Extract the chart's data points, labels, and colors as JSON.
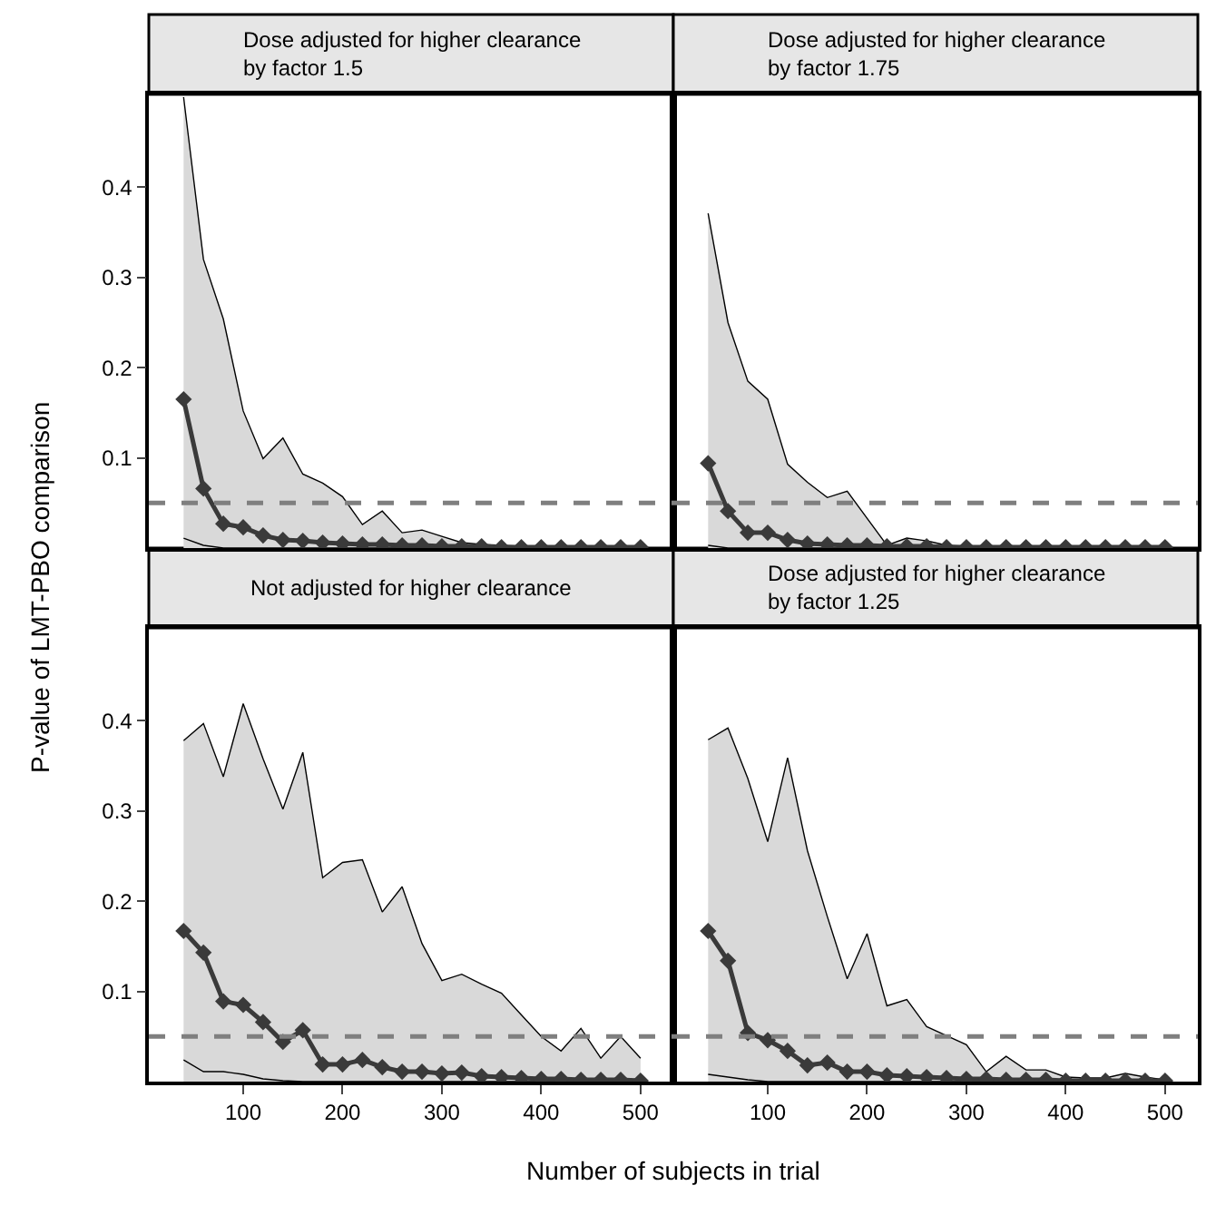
{
  "chart_data": [
    {
      "type": "line",
      "title": "Dose adjusted for higher clearance by factor 1.5",
      "ylabel": "P-value of LMT-PBO comparison",
      "x": [
        40,
        60,
        80,
        100,
        120,
        140,
        160,
        180,
        200,
        220,
        240,
        260,
        280,
        300,
        320,
        340,
        360,
        380,
        400,
        420,
        440,
        460,
        480,
        500
      ],
      "xlim": [
        5,
        533
      ],
      "ylim": [
        0,
        0.503
      ],
      "yticks": [
        0.1,
        0.2,
        0.3,
        0.4
      ],
      "xticks": [
        100,
        200,
        300,
        400,
        500
      ],
      "tick_labels": "y",
      "marker": "diamond",
      "line_style": "solid",
      "series": [
        {
          "type": "area",
          "color": "#000000",
          "marker": "none",
          "values": [
            0.5,
            0.32,
            0.254,
            0.152,
            0.099,
            0.122,
            0.082,
            0.072,
            0.057,
            0.026,
            0.041,
            0.017,
            0.02,
            0.013,
            0.006,
            0.004,
            0.003,
            0.002,
            0.002,
            0.001,
            0.001,
            0.001,
            0.001,
            0.001
          ]
        },
        {
          "type": "line",
          "color": "#000000",
          "marker": "none",
          "values": [
            0.011,
            0.003,
            0,
            0,
            0,
            0,
            0,
            0,
            0,
            0,
            0,
            0,
            0,
            0,
            0,
            0,
            0,
            0,
            0,
            0,
            0,
            0,
            0,
            0
          ]
        },
        {
          "color": "#3a3a3a",
          "values": [
            0.165,
            0.066,
            0.027,
            0.023,
            0.014,
            0.009,
            0.008,
            0.006,
            0.005,
            0.004,
            0.004,
            0.003,
            0.003,
            0.002,
            0.002,
            0.002,
            0.001,
            0.001,
            0.001,
            0.001,
            0.001,
            0.001,
            0.001,
            0.001
          ]
        }
      ],
      "ref_lines": [
        {
          "axis": "y",
          "value": 0.05,
          "color": "#7f7f7f",
          "line_style": "dashed"
        }
      ]
    },
    {
      "type": "line",
      "title": "Dose adjusted for higher clearance by factor 1.75",
      "x": [
        40,
        60,
        80,
        100,
        120,
        140,
        160,
        180,
        200,
        220,
        240,
        260,
        280,
        300,
        320,
        340,
        360,
        380,
        400,
        420,
        440,
        460,
        480,
        500
      ],
      "xlim": [
        5,
        533
      ],
      "ylim": [
        0,
        0.503
      ],
      "yticks": [
        0.1,
        0.2,
        0.3,
        0.4
      ],
      "xticks": [
        100,
        200,
        300,
        400,
        500
      ],
      "tick_labels": false,
      "marker": "diamond",
      "line_style": "solid",
      "series": [
        {
          "type": "area",
          "color": "#000000",
          "marker": "none",
          "values": [
            0.371,
            0.25,
            0.185,
            0.165,
            0.093,
            0.073,
            0.056,
            0.063,
            0.033,
            0.003,
            0.011,
            0.008,
            0.003,
            0.002,
            0.001,
            0.001,
            0.001,
            0.001,
            0.001,
            0.001,
            0.001,
            0.001,
            0.001,
            0.001
          ]
        },
        {
          "type": "line",
          "color": "#000000",
          "marker": "none",
          "values": [
            0.003,
            0,
            0,
            0,
            0,
            0,
            0,
            0,
            0,
            0,
            0,
            0,
            0,
            0,
            0,
            0,
            0,
            0,
            0,
            0,
            0,
            0,
            0,
            0
          ]
        },
        {
          "color": "#3a3a3a",
          "values": [
            0.094,
            0.041,
            0.017,
            0.017,
            0.009,
            0.005,
            0.004,
            0.003,
            0.003,
            0.002,
            0.002,
            0.002,
            0.001,
            0.001,
            0.001,
            0.001,
            0.001,
            0.001,
            0.001,
            0.001,
            0.001,
            0.001,
            0.001,
            0.001
          ]
        }
      ],
      "ref_lines": [
        {
          "axis": "y",
          "value": 0.05,
          "color": "#7f7f7f",
          "line_style": "dashed"
        }
      ]
    },
    {
      "type": "line",
      "title": "Not adjusted for higher clearance",
      "xlabel": "Number of subjects in trial",
      "x": [
        40,
        60,
        80,
        100,
        120,
        140,
        160,
        180,
        200,
        220,
        240,
        260,
        280,
        300,
        320,
        340,
        360,
        380,
        400,
        420,
        440,
        460,
        480,
        500
      ],
      "xlim": [
        5,
        533
      ],
      "ylim": [
        0,
        0.503
      ],
      "yticks": [
        0.1,
        0.2,
        0.3,
        0.4
      ],
      "xticks": [
        100,
        200,
        300,
        400,
        500
      ],
      "marker": "diamond",
      "line_style": "solid",
      "series": [
        {
          "type": "area",
          "color": "#000000",
          "marker": "none",
          "values": [
            0.378,
            0.397,
            0.338,
            0.419,
            0.358,
            0.302,
            0.365,
            0.226,
            0.243,
            0.246,
            0.188,
            0.216,
            0.153,
            0.112,
            0.119,
            0.108,
            0.098,
            0.074,
            0.05,
            0.034,
            0.059,
            0.026,
            0.05,
            0.026
          ]
        },
        {
          "type": "line",
          "color": "#000000",
          "marker": "none",
          "values": [
            0.024,
            0.011,
            0.011,
            0.008,
            0.003,
            0.001,
            0,
            0,
            0,
            0,
            0,
            0,
            0,
            0,
            0,
            0,
            0,
            0,
            0,
            0,
            0,
            0,
            0,
            0
          ]
        },
        {
          "color": "#3a3a3a",
          "values": [
            0.167,
            0.143,
            0.089,
            0.085,
            0.066,
            0.044,
            0.057,
            0.019,
            0.019,
            0.024,
            0.016,
            0.011,
            0.011,
            0.009,
            0.01,
            0.006,
            0.005,
            0.004,
            0.003,
            0.003,
            0.002,
            0.002,
            0.002,
            0.001
          ]
        }
      ],
      "ref_lines": [
        {
          "axis": "y",
          "value": 0.05,
          "color": "#7f7f7f",
          "line_style": "dashed"
        }
      ]
    },
    {
      "type": "line",
      "title": "Dose adjusted for higher clearance by factor 1.25",
      "x": [
        40,
        60,
        80,
        100,
        120,
        140,
        160,
        180,
        200,
        220,
        240,
        260,
        280,
        300,
        320,
        340,
        360,
        380,
        400,
        420,
        440,
        460,
        480,
        500
      ],
      "xlim": [
        5,
        533
      ],
      "ylim": [
        0,
        0.503
      ],
      "yticks": [
        0.1,
        0.2,
        0.3,
        0.4
      ],
      "xticks": [
        100,
        200,
        300,
        400,
        500
      ],
      "tick_labels": "x",
      "marker": "diamond",
      "line_style": "solid",
      "series": [
        {
          "type": "area",
          "color": "#000000",
          "marker": "none",
          "values": [
            0.379,
            0.392,
            0.336,
            0.266,
            0.359,
            0.256,
            0.183,
            0.114,
            0.164,
            0.084,
            0.091,
            0.061,
            0.051,
            0.041,
            0.011,
            0.028,
            0.013,
            0.013,
            0.005,
            0.004,
            0.004,
            0.009,
            0.005,
            0.002
          ]
        },
        {
          "type": "line",
          "color": "#000000",
          "marker": "none",
          "values": [
            0.008,
            0.005,
            0.002,
            0,
            0,
            0,
            0,
            0,
            0,
            0,
            0,
            0,
            0,
            0,
            0,
            0,
            0,
            0,
            0,
            0,
            0,
            0,
            0,
            0
          ]
        },
        {
          "color": "#3a3a3a",
          "values": [
            0.167,
            0.134,
            0.054,
            0.046,
            0.034,
            0.018,
            0.021,
            0.011,
            0.011,
            0.007,
            0.006,
            0.005,
            0.004,
            0.003,
            0.003,
            0.002,
            0.002,
            0.002,
            0.001,
            0.001,
            0.001,
            0.001,
            0.001,
            0.001
          ]
        }
      ],
      "ref_lines": [
        {
          "axis": "y",
          "value": 0.05,
          "color": "#7f7f7f",
          "line_style": "dashed"
        }
      ]
    }
  ]
}
